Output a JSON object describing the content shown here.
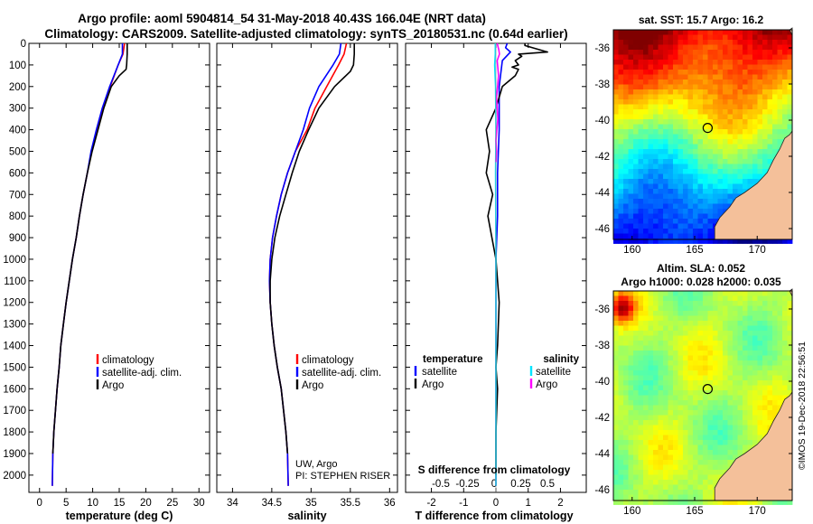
{
  "header": {
    "line1": "Argo profile: aoml 5904814_54 31-May-2018 40.43S 166.04E (NRT data)",
    "line2": "Climatology: CARS2009. Satellite-adjusted climatology: synTS_20180531.nc (0.64d earlier)"
  },
  "colors": {
    "climatology": "#ff0000",
    "satellite": "#0000ff",
    "argo": "#000000",
    "sat_t": "#0000ff",
    "sat_s": "#00e5ff",
    "argo_s": "#ff00ff",
    "land": "#f4c09a",
    "coast": "#222222"
  },
  "credits": {
    "line1": "UW, Argo",
    "line2": "PI: STEPHEN RISER",
    "timestamp": "©IMOS 19-Dec-2018 22:56:51"
  },
  "chart_data": [
    {
      "type": "line",
      "id": "temperature",
      "xlabel": "temperature (deg C)",
      "xlim": [
        -2,
        32
      ],
      "ylim": [
        2080,
        0
      ],
      "xticks": [
        "0",
        "5",
        "10",
        "15",
        "20",
        "25",
        "30"
      ],
      "yticks": [
        "0",
        "100",
        "200",
        "300",
        "400",
        "500",
        "600",
        "700",
        "800",
        "900",
        "1000",
        "1100",
        "1200",
        "1300",
        "1400",
        "1500",
        "1600",
        "1700",
        "1800",
        "1900",
        "2000"
      ],
      "legend": [
        "climatology",
        "satellite-adj. clim.",
        "Argo"
      ],
      "series": [
        {
          "name": "climatology",
          "color": "#ff0000",
          "x": [
            16.0,
            15.7,
            14.8,
            13.3,
            11.9,
            10.8,
            9.8,
            9.0,
            8.2,
            7.5,
            6.9,
            6.2,
            5.6,
            5.0,
            4.5,
            4.0,
            3.7,
            3.3,
            3.0,
            2.7,
            2.5,
            2.4
          ],
          "y": [
            0,
            50,
            100,
            200,
            300,
            400,
            500,
            600,
            700,
            800,
            900,
            1000,
            1100,
            1200,
            1300,
            1400,
            1500,
            1600,
            1700,
            1800,
            1900,
            2050
          ]
        },
        {
          "name": "satellite-adj. clim.",
          "color": "#0000ff",
          "x": [
            15.6,
            15.6,
            14.8,
            13.2,
            11.8,
            10.7,
            9.7,
            9.0,
            8.2,
            7.5,
            6.9,
            6.2,
            5.6,
            5.0,
            4.5,
            4.0,
            3.7,
            3.3,
            3.0,
            2.7,
            2.5,
            2.4
          ],
          "y": [
            0,
            50,
            100,
            200,
            300,
            400,
            500,
            600,
            700,
            800,
            900,
            1000,
            1100,
            1200,
            1300,
            1400,
            1500,
            1600,
            1700,
            1800,
            1900,
            2050
          ]
        },
        {
          "name": "Argo",
          "color": "#000000",
          "x": [
            16.5,
            16.5,
            16.4,
            16.3,
            15.0,
            13.5,
            12.1,
            11.0,
            9.9,
            9.0,
            8.2,
            7.5,
            6.9,
            6.2,
            5.6,
            5.0,
            4.5,
            4.0,
            3.7,
            3.3,
            3.0,
            2.7,
            2.5
          ],
          "y": [
            0,
            50,
            100,
            120,
            150,
            200,
            300,
            400,
            500,
            600,
            700,
            800,
            900,
            1000,
            1100,
            1200,
            1300,
            1400,
            1500,
            1600,
            1700,
            1800,
            1900
          ]
        }
      ]
    },
    {
      "type": "line",
      "id": "salinity",
      "xlabel": "salinity",
      "xlim": [
        33.8,
        36.1
      ],
      "ylim": [
        2080,
        0
      ],
      "xticks": [
        "34",
        "34.5",
        "35",
        "35.5",
        "36"
      ],
      "legend": [
        "climatology",
        "satellite-adj. clim.",
        "Argo"
      ],
      "series": [
        {
          "name": "climatology",
          "color": "#ff0000",
          "x": [
            35.45,
            35.42,
            35.35,
            35.2,
            35.05,
            34.95,
            34.8,
            34.7,
            34.62,
            34.56,
            34.51,
            34.48,
            34.47,
            34.48,
            34.5,
            34.53,
            34.57,
            34.62,
            34.65,
            34.68,
            34.7,
            34.71
          ],
          "y": [
            0,
            50,
            100,
            200,
            300,
            400,
            500,
            600,
            700,
            800,
            900,
            1000,
            1100,
            1200,
            1300,
            1400,
            1500,
            1600,
            1700,
            1800,
            1900,
            2050
          ]
        },
        {
          "name": "satellite-adj. clim.",
          "color": "#0000ff",
          "x": [
            35.38,
            35.36,
            35.28,
            35.1,
            34.98,
            34.9,
            34.8,
            34.7,
            34.62,
            34.56,
            34.51,
            34.48,
            34.47,
            34.48,
            34.5,
            34.53,
            34.57,
            34.62,
            34.65,
            34.68,
            34.7,
            34.71
          ],
          "y": [
            0,
            50,
            100,
            200,
            300,
            400,
            500,
            600,
            700,
            800,
            900,
            1000,
            1100,
            1200,
            1300,
            1400,
            1500,
            1600,
            1700,
            1800,
            1900,
            2050
          ]
        },
        {
          "name": "Argo",
          "color": "#000000",
          "x": [
            35.55,
            35.55,
            35.54,
            35.5,
            35.3,
            35.1,
            34.97,
            34.85,
            34.76,
            34.68,
            34.6,
            34.54,
            34.5,
            34.48,
            34.48,
            34.5,
            34.53,
            34.57,
            34.62,
            34.65,
            34.68,
            34.7
          ],
          "y": [
            0,
            50,
            100,
            130,
            200,
            300,
            400,
            500,
            600,
            700,
            800,
            900,
            1000,
            1100,
            1200,
            1300,
            1400,
            1500,
            1600,
            1700,
            1800,
            1900
          ]
        }
      ]
    },
    {
      "type": "line",
      "id": "difference",
      "xlabel": "T difference from climatology",
      "title2": "S difference from climatology",
      "xlim": [
        -2.8,
        2.8
      ],
      "ylim": [
        2080,
        0
      ],
      "xticks": [
        "-2",
        "-1",
        "0",
        "1",
        "2"
      ],
      "sticks": [
        "-0.5",
        "-0.25",
        "0",
        "0.25",
        "0.5"
      ],
      "legend_t": {
        "heading": "temperature",
        "items": [
          "satellite",
          "Argo"
        ]
      },
      "legend_s": {
        "heading": "salinity",
        "items": [
          "satellite",
          "Argo"
        ]
      },
      "series": [
        {
          "name": "T satellite",
          "color": "#0000ff",
          "x": [
            0.35,
            0.3,
            0.45,
            0.2,
            0.1,
            0.1,
            0.05,
            0.05,
            0.0,
            0.0,
            0.0
          ],
          "y": [
            0,
            20,
            40,
            80,
            200,
            400,
            600,
            800,
            1000,
            1500,
            2050
          ]
        },
        {
          "name": "T Argo",
          "color": "#000000",
          "x": [
            0.9,
            0.9,
            1.6,
            0.7,
            0.8,
            0.6,
            0.7,
            0.5,
            0.7,
            0.6,
            0.2,
            0.0,
            -0.3,
            -0.2,
            -0.3,
            -0.1,
            -0.25,
            0.0,
            0.1,
            0.05,
            0.0,
            0.05,
            0.0,
            0.0
          ],
          "y": [
            0,
            10,
            40,
            50,
            60,
            80,
            100,
            110,
            120,
            150,
            200,
            300,
            400,
            500,
            600,
            700,
            800,
            1000,
            1200,
            1400,
            1500,
            1600,
            1800,
            2000
          ]
        },
        {
          "name": "S satellite",
          "color": "#00e5ff",
          "x": [
            -0.02,
            -0.02,
            -0.04,
            -0.01,
            0.0,
            -0.01,
            0.0,
            0.0,
            0.0,
            0.0
          ],
          "y": [
            0,
            50,
            100,
            200,
            400,
            600,
            1000,
            1400,
            1800,
            2050
          ]
        },
        {
          "name": "S Argo",
          "color": "#ff00ff",
          "x": [
            0.04,
            0.09,
            0.11,
            0.04,
            0.08,
            0.02,
            0.06,
            0.0,
            0.02,
            0.0
          ],
          "y": [
            0,
            30,
            50,
            80,
            150,
            250,
            350,
            450,
            500,
            550
          ]
        }
      ]
    },
    {
      "type": "heatmap",
      "id": "sst_map",
      "title": "sat. SST: 15.7 Argo: 16.2",
      "xticks": [
        "160",
        "165",
        "170"
      ],
      "yticks": [
        "-36",
        "-38",
        "-40",
        "-42",
        "-44",
        "-46"
      ],
      "xlim": [
        158.5,
        172.8
      ],
      "ylim": [
        -46.6,
        -35.0
      ],
      "marker": {
        "lon": 166.04,
        "lat": -40.43
      }
    },
    {
      "type": "heatmap",
      "id": "sla_map",
      "title": "Altim. SLA: 0.052",
      "subtitle": "Argo h1000: 0.028 h2000: 0.035",
      "xticks": [
        "160",
        "165",
        "170"
      ],
      "yticks": [
        "-36",
        "-38",
        "-40",
        "-42",
        "-44",
        "-46"
      ],
      "xlim": [
        158.5,
        172.8
      ],
      "ylim": [
        -46.6,
        -35.0
      ],
      "marker": {
        "lon": 166.04,
        "lat": -40.43
      }
    }
  ]
}
